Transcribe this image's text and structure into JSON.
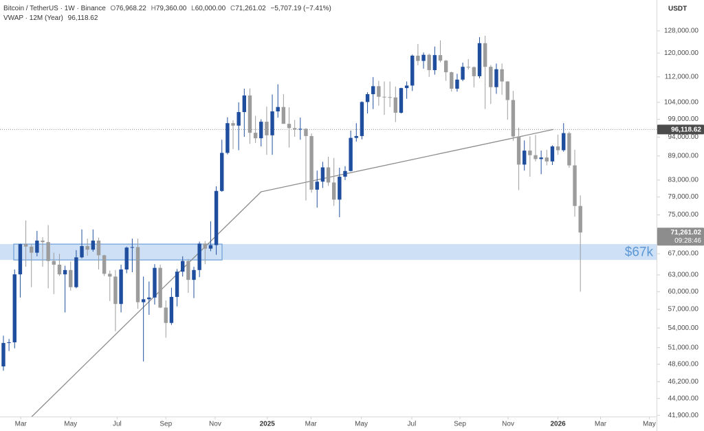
{
  "chart_data": {
    "type": "candlestick",
    "header": {
      "symbol": "Bitcoin / TetherUS · 1W · Binance",
      "ohlc": [
        {
          "key": "O",
          "text": "76,968.22"
        },
        {
          "key": "H",
          "text": "79,360.00"
        },
        {
          "key": "L",
          "text": "60,000.00"
        },
        {
          "key": "C",
          "text": "71,261.02"
        }
      ],
      "change": "−5,707.19 (−7.41%)",
      "indicator": "VWAP · 12M (Year)",
      "indicator_value": "96,118.62"
    },
    "currency": "USDT",
    "up_color": "#1f4e9e",
    "down_color": "#9c9c9c",
    "log_scale": true,
    "grid": false,
    "candles": {
      "open": [
        48300,
        51700,
        51800,
        63100,
        68900,
        68400,
        67200,
        69600,
        69300,
        65600,
        64900,
        63100,
        63900,
        60800,
        66300,
        68500,
        67800,
        69600,
        66700,
        63200,
        62700,
        57900,
        64000,
        68200,
        68300,
        58200,
        58700,
        59000,
        64300,
        57300,
        54800,
        59100,
        63600,
        65600,
        62100,
        63900,
        69000,
        68000,
        68700,
        80400,
        89800,
        97900,
        97200,
        101100,
        106100,
        95200,
        93700,
        98300,
        94500,
        101300,
        102600,
        97700,
        96500,
        96100,
        96300,
        94300,
        80700,
        82600,
        86100,
        82400,
        78400,
        83800,
        85200,
        93800,
        94300,
        104100,
        106500,
        109000,
        105700,
        105600,
        105500,
        100900,
        108400,
        109200,
        119100,
        117300,
        119400,
        114200,
        119300,
        117400,
        113500,
        108200,
        111100,
        115300,
        115200,
        112200,
        123500,
        115300,
        108700,
        114500,
        110500,
        104700,
        94200,
        86800,
        90400,
        89200,
        88200,
        88600,
        87600,
        91500,
        90500,
        95100,
        86600,
        76968.22
      ],
      "high": [
        52800,
        52300,
        64000,
        69000,
        73800,
        68900,
        71600,
        70300,
        72800,
        67200,
        67000,
        64700,
        65500,
        67700,
        71900,
        70000,
        71900,
        70200,
        66800,
        63800,
        63900,
        64900,
        68400,
        70000,
        70000,
        62700,
        61800,
        65000,
        64900,
        58500,
        60700,
        64100,
        66500,
        66000,
        64500,
        69400,
        69500,
        73600,
        81500,
        93300,
        99600,
        98700,
        104000,
        108200,
        108300,
        100000,
        99000,
        102700,
        106400,
        109600,
        106500,
        102500,
        98800,
        99500,
        96500,
        95000,
        85300,
        87500,
        88800,
        88500,
        86000,
        86400,
        95800,
        97900,
        104300,
        107100,
        111900,
        110700,
        110500,
        110500,
        108900,
        108500,
        110500,
        119500,
        123200,
        120200,
        119800,
        122300,
        124500,
        117600,
        113700,
        113000,
        116700,
        117900,
        115400,
        125700,
        126200,
        115900,
        116400,
        116400,
        110600,
        107500,
        96600,
        93100,
        94200,
        94600,
        90400,
        90600,
        91800,
        94700,
        97900,
        95500,
        90600,
        79360
      ],
      "low": [
        47700,
        50500,
        50900,
        59000,
        64500,
        60800,
        66500,
        64500,
        60600,
        59600,
        62800,
        56500,
        60200,
        60600,
        66100,
        66600,
        67400,
        64000,
        62800,
        58400,
        53500,
        56500,
        63300,
        63500,
        57100,
        49000,
        56100,
        57800,
        57200,
        52500,
        54500,
        57500,
        62700,
        59800,
        58900,
        62600,
        65000,
        67500,
        66800,
        80200,
        89400,
        90800,
        90500,
        94100,
        92200,
        92400,
        91500,
        89300,
        89300,
        99500,
        97800,
        91200,
        94100,
        93300,
        78200,
        80000,
        76600,
        81100,
        81600,
        77000,
        74500,
        83000,
        85100,
        92800,
        93400,
        100700,
        102000,
        103000,
        100300,
        102600,
        98200,
        100700,
        105100,
        107500,
        115800,
        114700,
        112000,
        112700,
        116800,
        110700,
        107300,
        107300,
        110600,
        114400,
        108600,
        111500,
        102000,
        103500,
        106600,
        106300,
        98900,
        93000,
        80600,
        85300,
        83800,
        87600,
        84400,
        86600,
        86700,
        89300,
        90100,
        86000,
        74600,
        60000
      ],
      "close": [
        51700,
        51800,
        63100,
        68900,
        68400,
        67200,
        69600,
        69300,
        65600,
        64900,
        63100,
        63900,
        60800,
        66300,
        68500,
        67800,
        69600,
        66700,
        63200,
        62700,
        57900,
        64000,
        68200,
        68300,
        58200,
        58700,
        59000,
        64300,
        57300,
        54800,
        59100,
        63600,
        65600,
        62100,
        63900,
        69000,
        68000,
        68700,
        80400,
        89800,
        97900,
        97200,
        101100,
        106100,
        95200,
        93700,
        98300,
        94500,
        101300,
        102600,
        97700,
        96500,
        96100,
        96300,
        94300,
        80700,
        82600,
        86100,
        82400,
        78400,
        83800,
        85200,
        93800,
        94300,
        104100,
        106500,
        109000,
        105700,
        105600,
        105500,
        100900,
        108400,
        109200,
        119100,
        117300,
        119400,
        114200,
        119300,
        117400,
        113500,
        108200,
        111100,
        115300,
        115200,
        112200,
        123500,
        115300,
        108700,
        114500,
        110500,
        104700,
        94200,
        86800,
        90400,
        89200,
        88200,
        88600,
        87600,
        91500,
        90500,
        95100,
        86600,
        76968.22,
        71261.02
      ]
    },
    "last_price_label": "71,261.02",
    "countdown": "09:28:46",
    "vwap": {
      "color": "#8c8c8c",
      "x": [
        5,
        46,
        98.2
      ],
      "values": [
        41700,
        80200,
        96118.62
      ]
    },
    "zone": {
      "label": "$67k",
      "low": 65800,
      "high": 68900,
      "color": "#c6dbf3",
      "edge_color": "#6a9fd8"
    },
    "xlim": [
      -0.61,
      116.6
    ],
    "xticks": [
      {
        "value": 3.1,
        "label": "Mar"
      },
      {
        "value": 12.0,
        "label": "May"
      },
      {
        "value": 20.3,
        "label": "Jul"
      },
      {
        "value": 29.0,
        "label": "Sep"
      },
      {
        "value": 37.8,
        "label": "Nov"
      },
      {
        "value": 47.1,
        "label": "2025"
      },
      {
        "value": 54.9,
        "label": "Mar"
      },
      {
        "value": 63.9,
        "label": "May"
      },
      {
        "value": 72.9,
        "label": "Jul"
      },
      {
        "value": 81.5,
        "label": "Sep"
      },
      {
        "value": 90.1,
        "label": "Nov"
      },
      {
        "value": 99.0,
        "label": "2026"
      },
      {
        "value": 106.6,
        "label": "Mar"
      },
      {
        "value": 115.3,
        "label": "May"
      }
    ],
    "ylim": [
      41750,
      140000
    ],
    "yticks": [
      {
        "value": 128000,
        "label": "128,000.00"
      },
      {
        "value": 120000,
        "label": "120,000.00"
      },
      {
        "value": 112000,
        "label": "112,000.00"
      },
      {
        "value": 104000,
        "label": "104,000.00"
      },
      {
        "value": 99000,
        "label": "99,000.00"
      },
      {
        "value": 94000,
        "label": "94,000.00"
      },
      {
        "value": 89000,
        "label": "89,000.00"
      },
      {
        "value": 83000,
        "label": "83,000.00"
      },
      {
        "value": 79000,
        "label": "79,000.00"
      },
      {
        "value": 75000,
        "label": "75,000.00"
      },
      {
        "value": 67000,
        "label": "67,000.00"
      },
      {
        "value": 63000,
        "label": "63,000.00"
      },
      {
        "value": 60000,
        "label": "60,000.00"
      },
      {
        "value": 57000,
        "label": "57,000.00"
      },
      {
        "value": 54000,
        "label": "54,000.00"
      },
      {
        "value": 51000,
        "label": "51,000.00"
      },
      {
        "value": 48600,
        "label": "48,600.00"
      },
      {
        "value": 46200,
        "label": "46,200.00"
      },
      {
        "value": 44000,
        "label": "44,000.00"
      },
      {
        "value": 41900,
        "label": "41,900.00"
      }
    ]
  }
}
